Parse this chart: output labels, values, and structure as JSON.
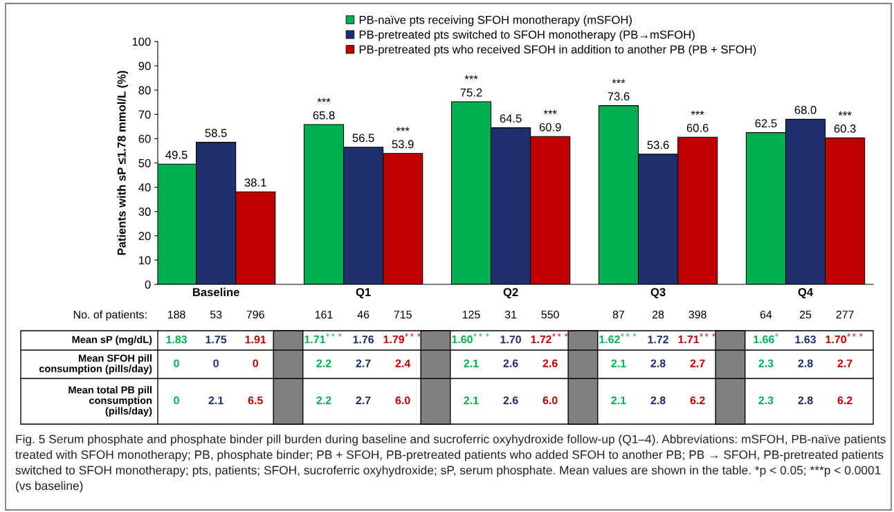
{
  "chart_data": {
    "type": "bar",
    "ylabel": "Patients with sP ≤1.78 mmol/L (%)",
    "categories": [
      "Baseline",
      "Q1",
      "Q2",
      "Q3",
      "Q4"
    ],
    "series": [
      {
        "name": "PB-naïve pts receiving SFOH monotherapy (mSFOH)",
        "color": "#00b050",
        "values": [
          49.5,
          65.8,
          75.2,
          73.6,
          62.5
        ],
        "value_labels": [
          "49.5",
          "***\n65.8",
          "***\n75.2",
          "***\n73.6",
          "62.5"
        ]
      },
      {
        "name": "PB-pretreated pts switched to SFOH monotherapy (PB→mSFOH)",
        "color": "#1f2f6e",
        "values": [
          58.5,
          56.5,
          64.5,
          53.6,
          68.0
        ],
        "value_labels": [
          "58.5",
          "56.5",
          "64.5",
          "53.6",
          "68.0"
        ]
      },
      {
        "name": "PB-pretreated pts who received SFOH in addition to another PB (PB + SFOH)",
        "color": "#c00000",
        "values": [
          38.1,
          53.9,
          60.9,
          60.6,
          60.3
        ],
        "value_labels": [
          "38.1",
          "***\n53.9",
          "***\n60.9",
          "***\n60.6",
          "***\n60.3"
        ]
      }
    ],
    "ylim": [
      0,
      100
    ],
    "yticks": [
      0,
      10,
      20,
      30,
      40,
      50,
      60,
      70,
      80,
      90,
      100
    ],
    "grid": false,
    "legend": "top",
    "annotations": [
      "No. of patients:",
      "188",
      "53",
      "796",
      "161",
      "46",
      "715",
      "125",
      "31",
      "550",
      "87",
      "28",
      "398",
      "64",
      "25",
      "277",
      "Mean sP (mg/dL)",
      "1.83",
      "1.75",
      "1.91",
      "1.71$^{***}$",
      "1.76",
      "1.79$^{***}$",
      "1.60$^{***}$",
      "1.70",
      "1.72$^{***}$",
      "1.62$^{***}$",
      "1.72",
      "1.71$^{***}$",
      "1.66$^{*}$",
      "1.63",
      "1.70$^{***}$",
      "Mean SFOH pill\nconsumption (pills/day)",
      "0",
      "0",
      "0",
      "2.2",
      "2.7",
      "2.4",
      "2.1",
      "2.6",
      "2.6",
      "2.1",
      "2.8",
      "2.7",
      "2.3",
      "2.8",
      "2.7",
      "Mean total PB pill\nconsumption\n(pills/day)",
      "0",
      "2.1",
      "6.5",
      "2.2",
      "2.7",
      "6.0",
      "2.1",
      "2.6",
      "6.0",
      "2.1",
      "2.8",
      "6.2",
      "2.3",
      "2.8",
      "6.2",
      "Fig. 5 Serum phosphate and phosphate binder pill burden during baseline and sucroferric oxyhydroxide follow-up (Q1–4). Abbreviations: mSFOH, PB-naïve patients treated with SFOH monotherapy; PB, phosphate binder; PB + SFOH, PB-pretreated patients who added SFOH to another PB; PB → SFOH, PB-pretreated patients switched to SFOH monotherapy; pts, patients; SFOH, sucroferric oxyhydroxide; sP, serum phosphate. Mean values are shown in the table. *p < 0.05; ***p < 0.0001 (vs baseline)"
    ]
  }
}
